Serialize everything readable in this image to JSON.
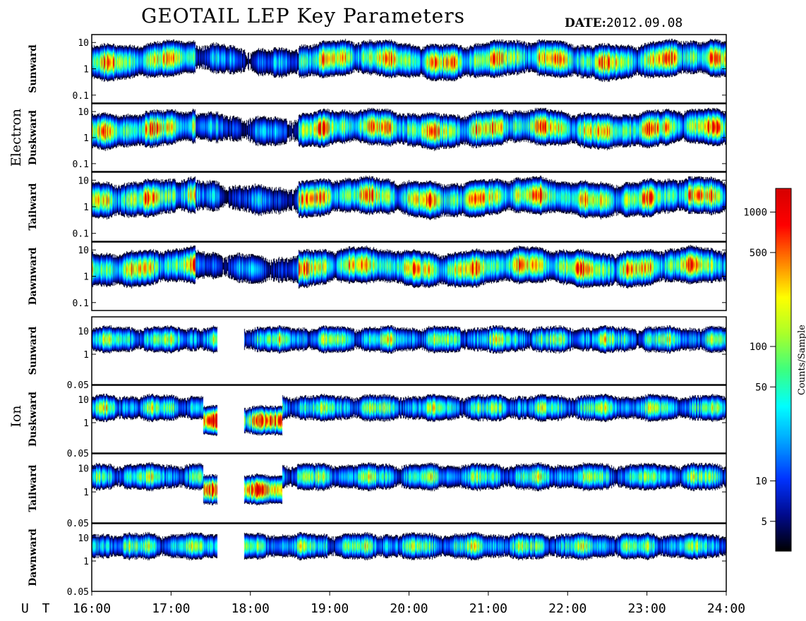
{
  "header": {
    "title": "GEOTAIL LEP Key Parameters",
    "date_label": "DATE:",
    "date_value": "2012.09.08"
  },
  "chart_data": {
    "type": "heatmap",
    "title": "GEOTAIL LEP Key Parameters",
    "x_axis": {
      "label": "U T",
      "range": [
        "16:00",
        "24:00"
      ],
      "ticks": [
        "16:00",
        "17:00",
        "18:00",
        "19:00",
        "20:00",
        "21:00",
        "22:00",
        "23:00",
        "24:00"
      ]
    },
    "colorbar": {
      "label": "Counts/Sample",
      "scale": "log",
      "range": [
        3,
        1500
      ],
      "ticks": [
        5,
        10,
        50,
        100,
        500,
        1000
      ],
      "colormap": [
        "#000000",
        "#000a8c",
        "#0033ff",
        "#00a0ff",
        "#00ffff",
        "#3cff80",
        "#aaff2a",
        "#ffff00",
        "#ff8000",
        "#ff0000",
        "#d60000"
      ]
    },
    "groups": [
      {
        "name": "Electron",
        "panels": [
          {
            "name": "Sunward",
            "y_scale": "log",
            "y_range": [
              0.05,
              20
            ],
            "y_ticks": [
              "0.1",
              "1",
              "10"
            ]
          },
          {
            "name": "Duskward",
            "y_scale": "log",
            "y_range": [
              0.05,
              20
            ],
            "y_ticks": [
              "0.1",
              "1",
              "10"
            ]
          },
          {
            "name": "Tailward",
            "y_scale": "log",
            "y_range": [
              0.05,
              20
            ],
            "y_ticks": [
              "0.1",
              "1",
              "10"
            ]
          },
          {
            "name": "Dawnward",
            "y_scale": "log",
            "y_range": [
              0.05,
              20
            ],
            "y_ticks": [
              "0.1",
              "1",
              "10"
            ]
          }
        ]
      },
      {
        "name": "Ion",
        "panels": [
          {
            "name": "Sunward",
            "y_scale": "log",
            "y_range": [
              0.05,
              40
            ],
            "y_ticks": [
              "0.05",
              "1",
              "10"
            ]
          },
          {
            "name": "Duskward",
            "y_scale": "log",
            "y_range": [
              0.05,
              40
            ],
            "y_ticks": [
              "0.05",
              "1",
              "10"
            ]
          },
          {
            "name": "Tailward",
            "y_scale": "log",
            "y_range": [
              0.05,
              40
            ],
            "y_ticks": [
              "0.05",
              "1",
              "10"
            ]
          },
          {
            "name": "Dawnward",
            "y_scale": "log",
            "y_range": [
              0.05,
              40
            ],
            "y_ticks": [
              "0.05",
              "1",
              "10"
            ]
          }
        ]
      }
    ],
    "data_gaps": [
      {
        "group": "Ion",
        "from": "17:35",
        "to": "17:55"
      }
    ]
  }
}
